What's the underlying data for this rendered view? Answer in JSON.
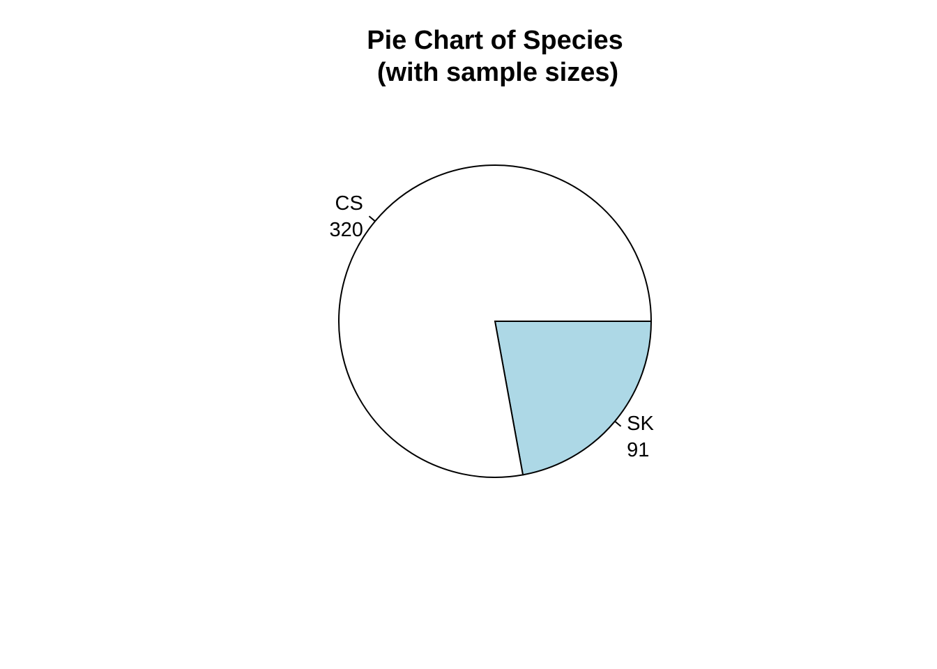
{
  "chart_data": {
    "type": "pie",
    "title": "Pie Chart of Species",
    "subtitle": "(with sample sizes)",
    "categories": [
      "SK",
      "CS"
    ],
    "values": [
      91,
      320
    ],
    "value_labels": [
      "91",
      "320"
    ],
    "colors": [
      "#ADD8E6",
      "#FFFFFF"
    ],
    "edge_color": "#000000",
    "start_angle_deg": 0,
    "direction": "clockwise",
    "legend": "none"
  }
}
